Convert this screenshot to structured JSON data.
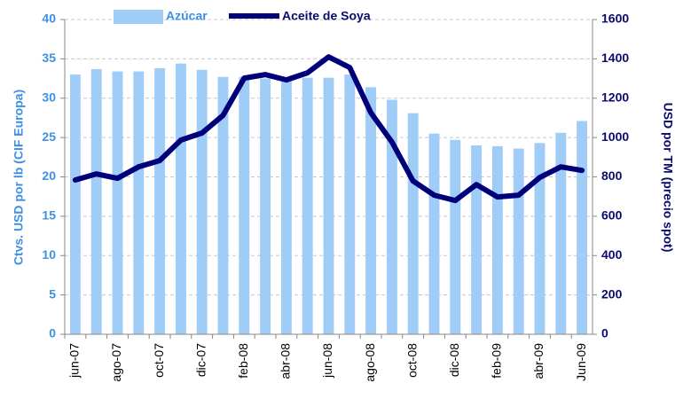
{
  "chart_data": {
    "type": "bar_line",
    "categories": [
      "jun-07",
      null,
      "ago-07",
      null,
      "oct-07",
      null,
      "dic-07",
      null,
      "feb-08",
      null,
      "abr-08",
      null,
      "jun-08",
      null,
      "ago-08",
      null,
      "oct-08",
      null,
      "dic-08",
      null,
      "feb-09",
      null,
      "abr-09",
      null,
      "Jun-09"
    ],
    "series": [
      {
        "name": "Azúcar",
        "type": "bar",
        "axis": "y",
        "color": "#9fcdf7",
        "values": [
          33,
          33.7,
          33.4,
          33.4,
          33.8,
          34.4,
          33.6,
          32.7,
          32.7,
          32.5,
          32.4,
          32.6,
          32.6,
          33,
          31.4,
          29.8,
          28.1,
          25.5,
          24.7,
          24,
          23.9,
          23.6,
          24.3,
          25.6,
          27.1
        ]
      },
      {
        "name": "Aceite de Soya",
        "type": "line",
        "axis": "y2",
        "color": "#00007a",
        "values": [
          784,
          815,
          793,
          851,
          883,
          987,
          1023,
          1113,
          1302,
          1320,
          1293,
          1329,
          1410,
          1356,
          1126,
          977,
          779,
          707,
          680,
          761,
          698,
          707,
          797,
          851,
          833
        ]
      }
    ],
    "ylabel": "Ctvs. USD por lb (CIF Europa)",
    "y2label": "USD por TM (precio spot)",
    "ylim": [
      0,
      40
    ],
    "yticks": [
      0,
      5,
      10,
      15,
      20,
      25,
      30,
      35,
      40
    ],
    "y2lim": [
      0,
      1600
    ],
    "y2ticks": [
      0,
      200,
      400,
      600,
      800,
      1000,
      1200,
      1400,
      1600
    ],
    "grid": true,
    "legend": "top"
  }
}
